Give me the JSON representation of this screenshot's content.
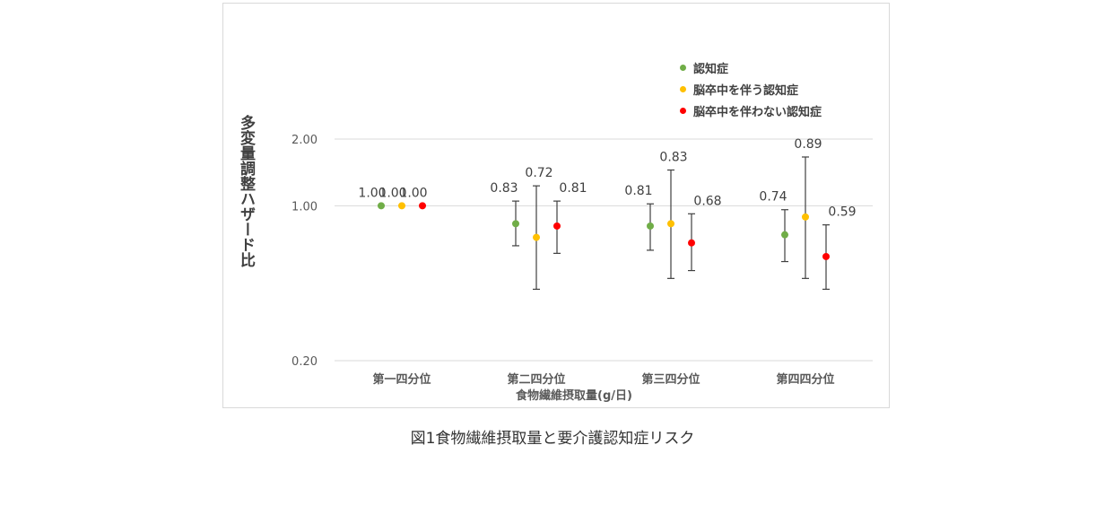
{
  "caption": "図1食物繊維摂取量と要介護認知症リスク",
  "chart_data": {
    "type": "scatter",
    "y_scale": "log",
    "ylabel": "多変量調整ハザード比",
    "xlabel": "食物繊維摂取量(g/日)",
    "yticks": [
      {
        "value": 0.2,
        "label": "0.20"
      },
      {
        "value": 1.0,
        "label": "1.00"
      },
      {
        "value": 2.0,
        "label": "2.00"
      }
    ],
    "ylim": [
      0.2,
      2.0
    ],
    "grid": true,
    "legend_position": "top-right",
    "categories": [
      "第一四分位",
      "第二四分位",
      "第三四分位",
      "第四四分位"
    ],
    "series": [
      {
        "name": "認知症",
        "color": "#70ad47",
        "values": [
          1.0,
          0.83,
          0.81,
          0.74
        ],
        "ci_lower": [
          null,
          0.66,
          0.63,
          0.56
        ],
        "ci_upper": [
          null,
          1.05,
          1.02,
          0.96
        ],
        "labels": [
          "1.00",
          "0.83",
          "0.81",
          "0.74"
        ]
      },
      {
        "name": "脳卒中を伴う認知症",
        "color": "#ffc000",
        "values": [
          1.0,
          0.72,
          0.83,
          0.89
        ],
        "ci_lower": [
          null,
          0.42,
          0.47,
          0.47
        ],
        "ci_upper": [
          null,
          1.23,
          1.45,
          1.66
        ],
        "labels": [
          "1.00",
          "0.72",
          "0.83",
          "0.89"
        ]
      },
      {
        "name": "脳卒中を伴わない認知症",
        "color": "#ff0000",
        "values": [
          1.0,
          0.81,
          0.68,
          0.59
        ],
        "ci_lower": [
          null,
          0.61,
          0.51,
          0.42
        ],
        "ci_upper": [
          null,
          1.05,
          0.92,
          0.82
        ],
        "labels": [
          "1.00",
          "0.81",
          "0.68",
          "0.59"
        ]
      }
    ]
  }
}
